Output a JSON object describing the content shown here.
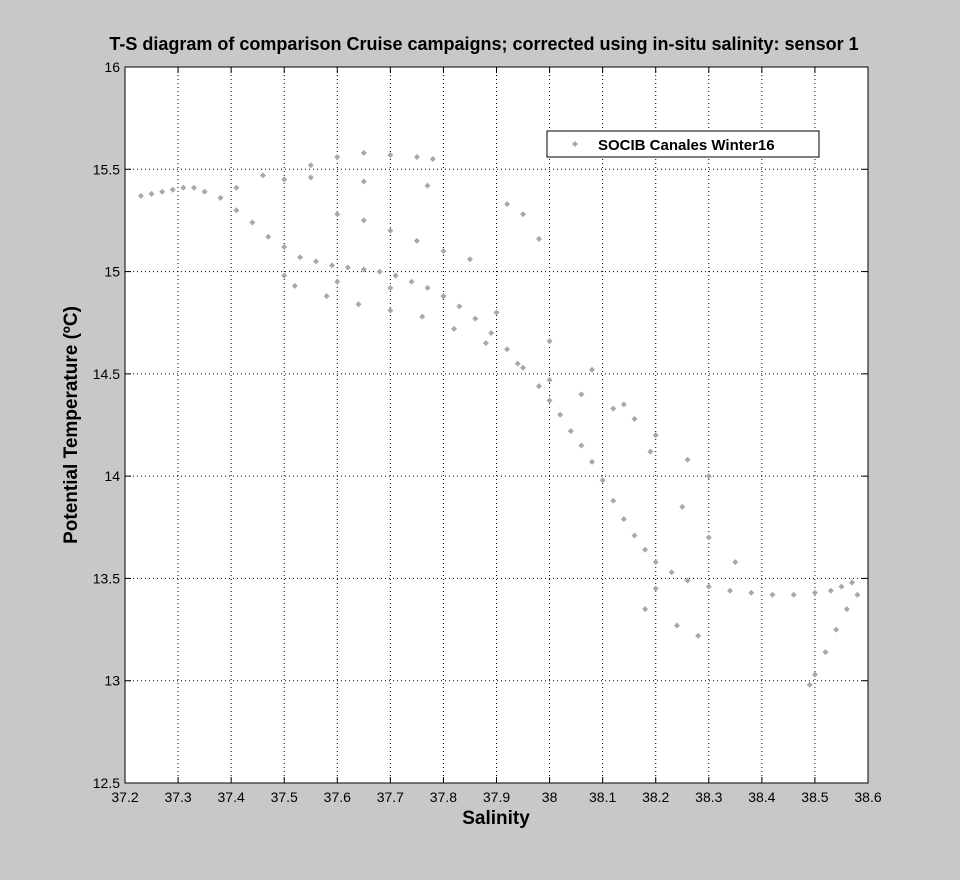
{
  "chart_data": {
    "type": "scatter",
    "title": "T-S diagram of comparison Cruise campaigns; corrected using in-situ salinity: sensor 1",
    "xlabel": "Salinity",
    "ylabel": "Potential Temperature (ºC)",
    "xlim": [
      37.2,
      38.6
    ],
    "ylim": [
      12.5,
      16
    ],
    "xticks": [
      "37.2",
      "37.3",
      "37.4",
      "37.5",
      "37.6",
      "37.7",
      "37.8",
      "37.9",
      "38",
      "38.1",
      "38.2",
      "38.3",
      "38.4",
      "38.5",
      "38.6"
    ],
    "yticks": [
      "12.5",
      "13",
      "13.5",
      "14",
      "14.5",
      "15",
      "15.5",
      "16"
    ],
    "grid": true,
    "legend_position": "top-right",
    "series": [
      {
        "name": "SOCIB Canales Winter16",
        "color": "#a8a8a8",
        "marker": "diamond",
        "x": [
          37.23,
          37.25,
          37.27,
          37.29,
          37.31,
          37.33,
          37.35,
          37.38,
          37.41,
          37.44,
          37.47,
          37.5,
          37.53,
          37.56,
          37.59,
          37.62,
          37.65,
          37.68,
          37.71,
          37.74,
          37.77,
          37.8,
          37.83,
          37.86,
          37.89,
          37.92,
          37.95,
          37.98,
          38.0,
          38.02,
          38.04,
          38.06,
          38.08,
          38.1,
          38.12,
          38.14,
          38.16,
          38.18,
          38.2,
          38.23,
          38.26,
          38.3,
          38.34,
          38.38,
          38.42,
          38.46,
          38.5,
          38.53,
          38.55,
          38.57,
          38.58,
          38.56,
          38.54,
          38.52,
          38.5,
          38.49,
          37.5,
          37.55,
          37.6,
          37.65,
          37.7,
          37.75,
          37.78,
          37.77,
          37.65,
          37.55,
          37.46,
          37.41,
          37.92,
          37.95,
          37.98,
          37.6,
          37.65,
          37.7,
          37.75,
          37.8,
          37.85,
          37.52,
          37.58,
          37.64,
          37.7,
          37.76,
          37.82,
          37.88,
          37.94,
          38.0,
          38.06,
          38.12,
          38.16,
          38.2,
          38.26,
          38.3,
          38.2,
          38.18,
          38.24,
          38.28,
          37.5,
          37.6,
          37.7,
          37.8,
          37.9,
          38.0,
          38.08,
          38.14,
          38.19,
          38.25,
          38.3,
          38.35
        ],
        "y": [
          15.37,
          15.38,
          15.39,
          15.4,
          15.41,
          15.41,
          15.39,
          15.36,
          15.3,
          15.24,
          15.17,
          15.12,
          15.07,
          15.05,
          15.03,
          15.02,
          15.01,
          15.0,
          14.98,
          14.95,
          14.92,
          14.88,
          14.83,
          14.77,
          14.7,
          14.62,
          14.53,
          14.44,
          14.37,
          14.3,
          14.22,
          14.15,
          14.07,
          13.98,
          13.88,
          13.79,
          13.71,
          13.64,
          13.58,
          13.53,
          13.49,
          13.46,
          13.44,
          13.43,
          13.42,
          13.42,
          13.43,
          13.44,
          13.46,
          13.48,
          13.42,
          13.35,
          13.25,
          13.14,
          13.03,
          12.98,
          15.45,
          15.52,
          15.56,
          15.58,
          15.57,
          15.56,
          15.55,
          15.42,
          15.44,
          15.46,
          15.47,
          15.41,
          15.33,
          15.28,
          15.16,
          15.28,
          15.25,
          15.2,
          15.15,
          15.1,
          15.06,
          14.93,
          14.88,
          14.84,
          14.81,
          14.78,
          14.72,
          14.65,
          14.55,
          14.47,
          14.4,
          14.33,
          14.28,
          14.2,
          14.08,
          14.0,
          13.45,
          13.35,
          13.27,
          13.22,
          14.98,
          14.95,
          14.92,
          14.88,
          14.8,
          14.66,
          14.52,
          14.35,
          14.12,
          13.85,
          13.7,
          13.58
        ]
      }
    ]
  }
}
